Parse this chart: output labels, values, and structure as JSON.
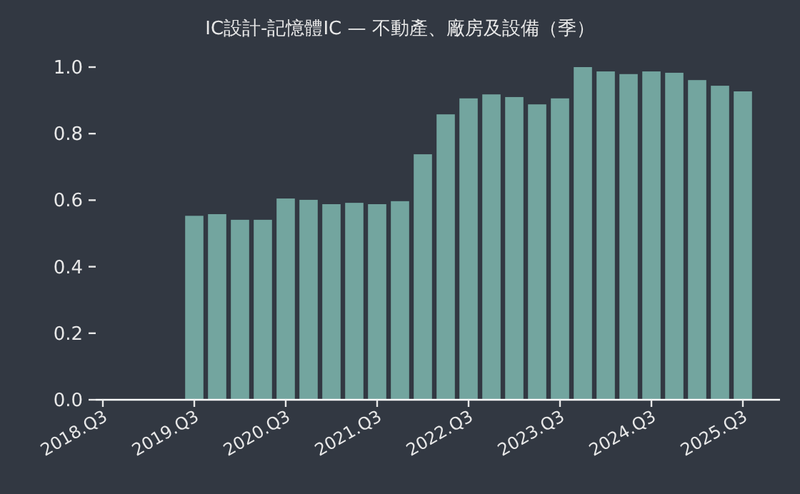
{
  "chart_data": {
    "type": "bar",
    "title": "IC設計-記憶體IC — 不動產、廠房及設備（季）",
    "categories": [
      "2018.Q3",
      null,
      null,
      null,
      "2019.Q3",
      null,
      null,
      null,
      "2020.Q3",
      null,
      null,
      null,
      "2021.Q3",
      null,
      null,
      null,
      "2022.Q3",
      null,
      null,
      null,
      "2023.Q3",
      null,
      null,
      null,
      "2024.Q3",
      null,
      null,
      null,
      "2025.Q3"
    ],
    "values": [
      null,
      null,
      null,
      null,
      0.553,
      0.558,
      0.541,
      0.541,
      0.605,
      0.601,
      0.588,
      0.592,
      0.588,
      0.597,
      0.738,
      0.858,
      0.906,
      0.918,
      0.91,
      0.888,
      0.906,
      1.0,
      0.987,
      0.979,
      0.987,
      0.983,
      0.961,
      0.944,
      0.927
    ],
    "color": "#73a59f",
    "ylim": [
      0,
      1
    ],
    "yticks": [
      {
        "value": 0,
        "label": "0.0"
      },
      0.2,
      0.4,
      0.6,
      0.8,
      {
        "value": 1,
        "label": "1.0"
      }
    ],
    "grid": false
  }
}
